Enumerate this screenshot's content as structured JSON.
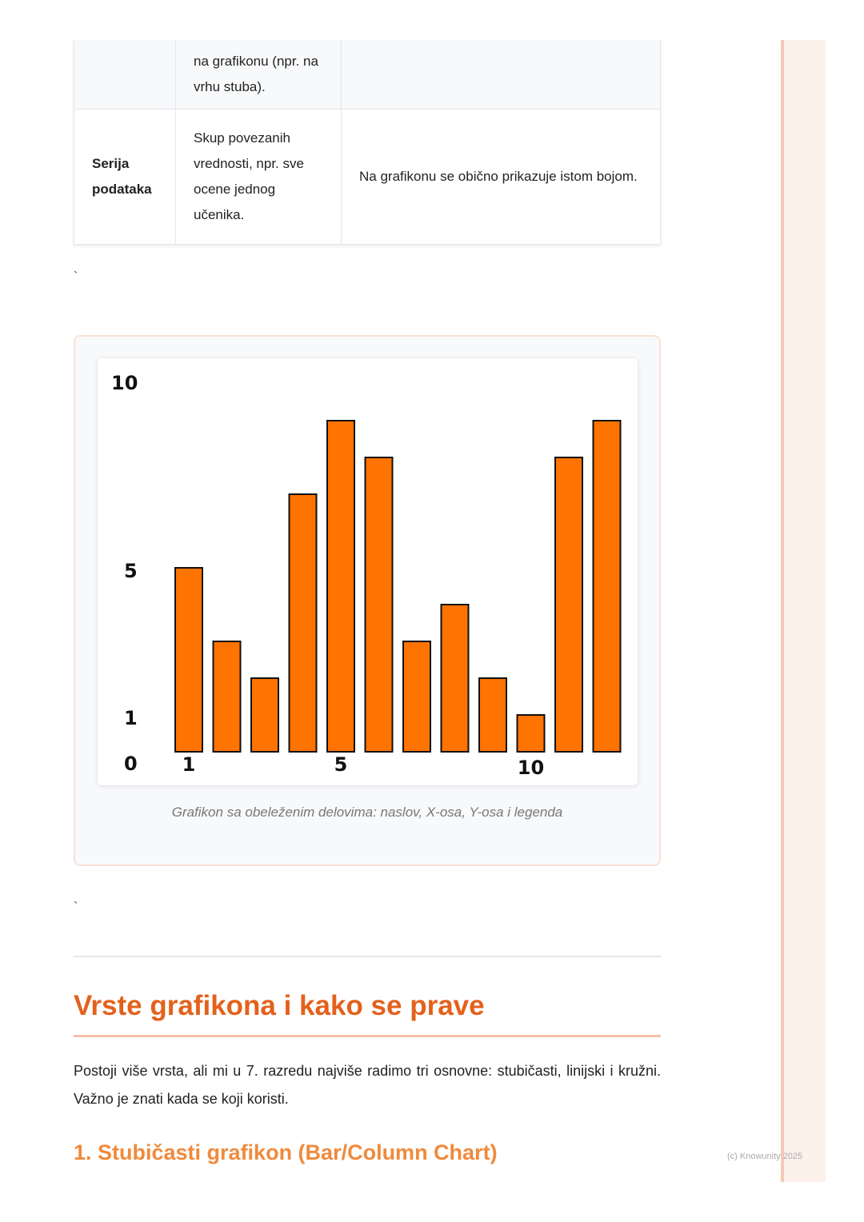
{
  "table": {
    "rows": [
      {
        "term": "",
        "definition": "na grafikonu (npr. na vrhu stuba).",
        "note": ""
      },
      {
        "term": "Serija podataka",
        "definition": "Skup povezanih vrednosti, npr. sve ocene jednog učenika.",
        "note": "Na grafikonu se obično prikazuje istom bojom."
      }
    ]
  },
  "separator_1": "`",
  "separator_2": "`",
  "figure": {
    "caption": "Grafikon sa obeleženim delovima: naslov, X-osa, Y-osa i legenda"
  },
  "chart_data": {
    "type": "bar",
    "categories": [
      1,
      2,
      3,
      4,
      5,
      6,
      7,
      8,
      9,
      10,
      11,
      12
    ],
    "values": [
      5,
      3,
      2,
      7,
      9,
      8,
      3,
      4,
      2,
      1,
      8,
      9
    ],
    "y_tick_labels": [
      "0",
      "1",
      "5",
      "10"
    ],
    "x_tick_labels": [
      {
        "at": 1,
        "label": "1"
      },
      {
        "at": 5,
        "label": "5"
      },
      {
        "at": 10,
        "label": "10"
      }
    ],
    "ylim": [
      0,
      10
    ],
    "grid": false,
    "bar_color": "#ff7300",
    "title": "",
    "xlabel": "",
    "ylabel": ""
  },
  "section": {
    "heading": "Vrste grafikona i kako se prave",
    "paragraph": "Postoji više vrsta, ali mi u 7. razredu najviše radimo tri osnovne: stubičasti, linijski i kružni. Važno je znati kada se koji koristi.",
    "subheading": "1. Stubičasti grafikon (Bar/Column Chart)"
  },
  "footer": "(c) Knowunity 2025",
  "colors": {
    "heading": "#e4611b",
    "subheading": "#f08a3c",
    "accent_border": "#f4c1a9"
  }
}
